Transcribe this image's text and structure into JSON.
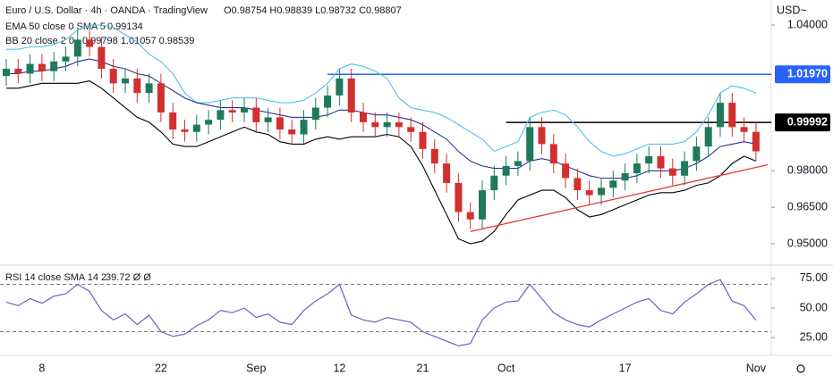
{
  "chart_data": [
    {
      "type": "candlestick",
      "title": "Euro / U.S. Dollar · 4h · OANDA · TradingView",
      "ohlc_readout": "O0.98754 H0.98839 L0.98732 C0.98807",
      "y_axis_label": "USD~",
      "indicators": [
        {
          "label": "EMA 50 close 0 SMA 5",
          "readout": "0.99134"
        },
        {
          "label": "BB 20 close 2 0",
          "readout": "0.99798 1.01057 0.98539"
        }
      ],
      "categories": [
        null,
        null,
        null,
        "8",
        null,
        null,
        null,
        null,
        null,
        null,
        null,
        null,
        null,
        "22",
        null,
        null,
        null,
        null,
        null,
        null,
        null,
        "Sep",
        null,
        null,
        null,
        null,
        null,
        null,
        "12",
        null,
        null,
        null,
        null,
        null,
        null,
        "21",
        null,
        null,
        null,
        null,
        null,
        null,
        "Oct",
        null,
        null,
        null,
        null,
        null,
        null,
        null,
        null,
        null,
        "17",
        null,
        null,
        null,
        null,
        null,
        null,
        null,
        null,
        null,
        null,
        "Nov"
      ],
      "open": [
        1.019,
        1.022,
        1.02,
        1.024,
        1.021,
        1.025,
        1.027,
        1.034,
        1.031,
        1.022,
        1.016,
        1.018,
        1.012,
        1.016,
        1.004,
        0.997,
        0.996,
        0.999,
        1.001,
        1.005,
        1.004,
        1.006,
        1.0,
        1.002,
        0.997,
        0.995,
        1.001,
        1.006,
        1.011,
        1.018,
        1.004,
        1.0,
        0.998,
        1.0,
        0.998,
        0.996,
        0.989,
        0.983,
        0.975,
        0.963,
        0.96,
        0.972,
        0.978,
        0.982,
        0.984,
        0.998,
        0.991,
        0.983,
        0.977,
        0.972,
        0.97,
        0.973,
        0.976,
        0.979,
        0.983,
        0.986,
        0.981,
        0.978,
        0.984,
        0.99,
        0.998,
        1.008,
        0.998,
        0.996
      ],
      "high": [
        1.026,
        1.026,
        1.028,
        1.028,
        1.029,
        1.031,
        1.038,
        1.038,
        1.035,
        1.026,
        1.022,
        1.022,
        1.02,
        1.02,
        1.008,
        1.001,
        1.003,
        1.005,
        1.009,
        1.009,
        1.01,
        1.01,
        1.006,
        1.006,
        1.001,
        1.005,
        1.01,
        1.015,
        1.022,
        1.022,
        1.008,
        1.004,
        1.004,
        1.004,
        1.002,
        1.0,
        0.993,
        0.987,
        0.979,
        0.967,
        0.976,
        0.982,
        0.986,
        0.988,
        1.002,
        1.002,
        0.995,
        0.987,
        0.981,
        0.976,
        0.977,
        0.98,
        0.983,
        0.987,
        0.99,
        0.99,
        0.985,
        0.988,
        0.994,
        1.002,
        1.012,
        1.012,
        1.002,
        1.0
      ],
      "low": [
        1.015,
        1.016,
        1.016,
        1.017,
        1.017,
        1.021,
        1.023,
        1.027,
        1.018,
        1.012,
        1.012,
        1.008,
        1.008,
        1.0,
        0.993,
        0.992,
        0.992,
        0.995,
        0.997,
        1.0,
        1.0,
        0.996,
        0.996,
        0.993,
        0.991,
        0.991,
        0.997,
        1.002,
        1.007,
        1.0,
        0.996,
        0.994,
        0.994,
        0.994,
        0.992,
        0.985,
        0.979,
        0.971,
        0.959,
        0.956,
        0.956,
        0.968,
        0.974,
        0.978,
        0.98,
        0.987,
        0.979,
        0.973,
        0.968,
        0.966,
        0.966,
        0.969,
        0.972,
        0.975,
        0.979,
        0.977,
        0.974,
        0.974,
        0.98,
        0.986,
        0.994,
        0.994,
        0.992,
        0.984
      ],
      "close": [
        1.022,
        1.02,
        1.024,
        1.021,
        1.025,
        1.027,
        1.034,
        1.031,
        1.022,
        1.016,
        1.018,
        1.012,
        1.016,
        1.004,
        0.997,
        0.996,
        0.999,
        1.001,
        1.005,
        1.004,
        1.006,
        1.0,
        1.002,
        0.997,
        0.995,
        1.001,
        1.006,
        1.011,
        1.018,
        1.004,
        1.0,
        0.998,
        1.0,
        0.998,
        0.996,
        0.989,
        0.983,
        0.975,
        0.963,
        0.96,
        0.972,
        0.978,
        0.982,
        0.984,
        0.998,
        0.991,
        0.983,
        0.977,
        0.972,
        0.97,
        0.973,
        0.976,
        0.979,
        0.983,
        0.986,
        0.981,
        0.978,
        0.984,
        0.99,
        0.998,
        1.008,
        0.998,
        0.996,
        0.988
      ],
      "up_color": "#1f7a5c",
      "down_color": "#d32f2f",
      "series": [
        {
          "color": "#4dc3e8",
          "values": [
            1.03,
            1.03,
            1.031,
            1.031,
            1.032,
            1.034,
            1.038,
            1.04,
            1.04,
            1.039,
            1.036,
            1.033,
            1.028,
            1.025,
            1.02,
            1.012,
            1.008,
            1.008,
            1.009,
            1.01,
            1.01,
            1.01,
            1.009,
            1.008,
            1.008,
            1.009,
            1.012,
            1.016,
            1.022,
            1.024,
            1.023,
            1.021,
            1.018,
            1.01,
            1.006,
            1.005,
            1.004,
            1.002,
            0.999,
            0.996,
            0.993,
            0.988,
            0.99,
            0.992,
            1.002,
            1.004,
            1.005,
            1.003,
            0.998,
            0.992,
            0.988,
            0.986,
            0.987,
            0.989,
            0.991,
            0.991,
            0.991,
            0.992,
            0.996,
            1.003,
            1.012,
            1.015,
            1.014,
            1.012
          ]
        },
        {
          "color": "#000000",
          "values": [
            1.014,
            1.014,
            1.015,
            1.016,
            1.016,
            1.016,
            1.016,
            1.017,
            1.014,
            1.01,
            1.006,
            1.002,
            1.0,
            0.996,
            0.991,
            0.99,
            0.99,
            0.992,
            0.994,
            0.996,
            0.998,
            0.996,
            0.995,
            0.992,
            0.991,
            0.991,
            0.993,
            0.994,
            0.993,
            0.994,
            0.994,
            0.994,
            0.995,
            0.994,
            0.99,
            0.982,
            0.972,
            0.962,
            0.952,
            0.95,
            0.951,
            0.955,
            0.962,
            0.968,
            0.97,
            0.972,
            0.972,
            0.969,
            0.964,
            0.961,
            0.962,
            0.964,
            0.966,
            0.968,
            0.97,
            0.971,
            0.971,
            0.972,
            0.974,
            0.975,
            0.978,
            0.983,
            0.986,
            0.984
          ]
        },
        {
          "color": "#283593",
          "values": [
            1.02,
            1.02,
            1.021,
            1.021,
            1.022,
            1.023,
            1.025,
            1.026,
            1.025,
            1.023,
            1.022,
            1.02,
            1.019,
            1.016,
            1.013,
            1.01,
            1.008,
            1.007,
            1.006,
            1.006,
            1.006,
            1.005,
            1.004,
            1.003,
            1.002,
            1.002,
            1.002,
            1.003,
            1.005,
            1.005,
            1.004,
            1.003,
            1.003,
            1.002,
            1.001,
            0.999,
            0.996,
            0.993,
            0.988,
            0.984,
            0.982,
            0.981,
            0.981,
            0.981,
            0.984,
            0.985,
            0.984,
            0.982,
            0.98,
            0.978,
            0.977,
            0.977,
            0.977,
            0.978,
            0.98,
            0.98,
            0.98,
            0.981,
            0.983,
            0.986,
            0.99,
            0.991,
            0.992,
            0.991
          ]
        }
      ],
      "levels": [
        {
          "value": 1.0197,
          "label": "1.01970",
          "color": "#2962ff",
          "start": 27
        },
        {
          "value": 0.99992,
          "label": "0.99992",
          "color": "#000000",
          "start": 42
        }
      ],
      "trendline": {
        "color": "#e53935",
        "start": [
          39,
          0.955
        ],
        "end": [
          64,
          0.9825
        ]
      },
      "ylim": [
        0.9419,
        1.0503
      ],
      "yticks": [
        {
          "value": 1.04,
          "label": "1.04000"
        },
        {
          "value": 0.98,
          "label": "0.98000"
        },
        {
          "value": 0.965,
          "label": "0.96500"
        },
        {
          "value": 0.95,
          "label": "0.95000"
        }
      ]
    },
    {
      "type": "line",
      "title": "RSI 14 close SMA 14 2",
      "readout": "39.72 Ø Ø",
      "color": "#7e57c2",
      "values": [
        55,
        52,
        58,
        54,
        60,
        62,
        70,
        64,
        48,
        40,
        45,
        36,
        44,
        30,
        26,
        28,
        35,
        40,
        48,
        46,
        50,
        42,
        45,
        38,
        36,
        48,
        56,
        62,
        70,
        44,
        40,
        38,
        42,
        40,
        38,
        30,
        26,
        22,
        18,
        20,
        40,
        50,
        55,
        56,
        70,
        58,
        46,
        40,
        36,
        34,
        40,
        45,
        50,
        55,
        58,
        48,
        45,
        55,
        62,
        70,
        74,
        56,
        52,
        39.72
      ],
      "levels": [
        30,
        70
      ],
      "ylim": [
        10,
        84
      ],
      "yticks": [
        {
          "value": 75,
          "label": "75.00"
        },
        {
          "value": 50,
          "label": "50.00"
        },
        {
          "value": 25,
          "label": "25.00"
        }
      ]
    }
  ]
}
